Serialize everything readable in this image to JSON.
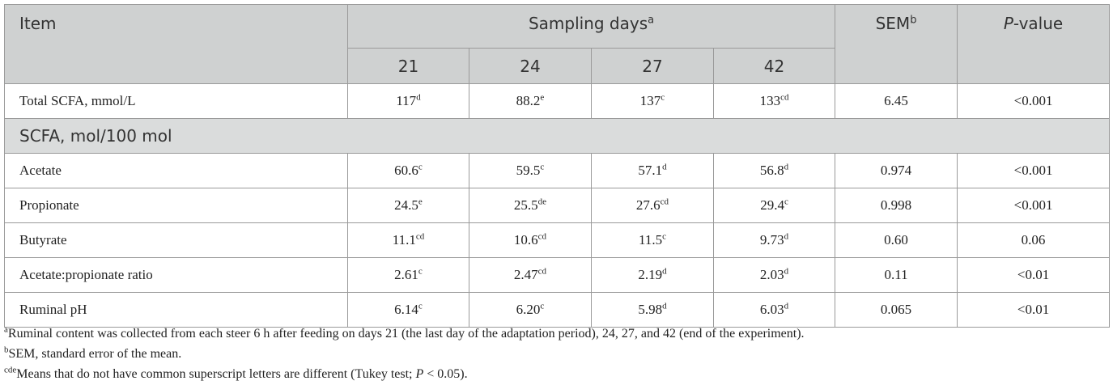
{
  "header": {
    "item": "Item",
    "group": "Sampling days",
    "group_sup": "a",
    "sem": "SEM",
    "sem_sup": "b",
    "p_italic": "P",
    "p_rest": "-value",
    "days": [
      "21",
      "24",
      "27",
      "42"
    ]
  },
  "rows": [
    {
      "label": "Total SCFA, mmol/L",
      "cells": [
        {
          "v": "117",
          "s": "d"
        },
        {
          "v": "88.2",
          "s": "e"
        },
        {
          "v": "137",
          "s": "c"
        },
        {
          "v": "133",
          "s": "cd"
        }
      ],
      "sem": "6.45",
      "p": "<0.001"
    },
    {
      "section": "SCFA, mol/100 mol"
    },
    {
      "label": "Acetate",
      "cells": [
        {
          "v": "60.6",
          "s": "c"
        },
        {
          "v": "59.5",
          "s": "c"
        },
        {
          "v": "57.1",
          "s": "d"
        },
        {
          "v": "56.8",
          "s": "d"
        }
      ],
      "sem": "0.974",
      "p": "<0.001"
    },
    {
      "label": "Propionate",
      "cells": [
        {
          "v": "24.5",
          "s": "e"
        },
        {
          "v": "25.5",
          "s": "de"
        },
        {
          "v": "27.6",
          "s": "cd"
        },
        {
          "v": "29.4",
          "s": "c"
        }
      ],
      "sem": "0.998",
      "p": "<0.001"
    },
    {
      "label": "Butyrate",
      "cells": [
        {
          "v": "11.1",
          "s": "cd"
        },
        {
          "v": "10.6",
          "s": "cd"
        },
        {
          "v": "11.5",
          "s": "c"
        },
        {
          "v": "9.73",
          "s": "d"
        }
      ],
      "sem": "0.60",
      "p": "0.06"
    },
    {
      "label": "Acetate:propionate ratio",
      "cells": [
        {
          "v": "2.61",
          "s": "c"
        },
        {
          "v": "2.47",
          "s": "cd"
        },
        {
          "v": "2.19",
          "s": "d"
        },
        {
          "v": "2.03",
          "s": "d"
        }
      ],
      "sem": "0.11",
      "p": "<0.01"
    },
    {
      "label": "Ruminal pH",
      "cells": [
        {
          "v": "6.14",
          "s": "c"
        },
        {
          "v": "6.20",
          "s": "c"
        },
        {
          "v": "5.98",
          "s": "d"
        },
        {
          "v": "6.03",
          "s": "d"
        }
      ],
      "sem": "0.065",
      "p": "<0.01"
    }
  ],
  "notes": [
    {
      "sup": "a",
      "text": "Ruminal content was collected from each steer 6 h after feeding on days 21 (the last day of the adaptation period), 24, 27, and 42 (end of the experiment)."
    },
    {
      "sup": "b",
      "text": "SEM, standard error of the mean."
    },
    {
      "sup": "cde",
      "text_before": "Means that do not have common superscript letters are different (Tukey test; ",
      "text_italic": "P",
      "text_after": " < 0.05)."
    }
  ],
  "colors": {
    "header_bg": "#cfd1d1",
    "section_bg": "#dadcdc",
    "border": "#9a9a9a"
  }
}
